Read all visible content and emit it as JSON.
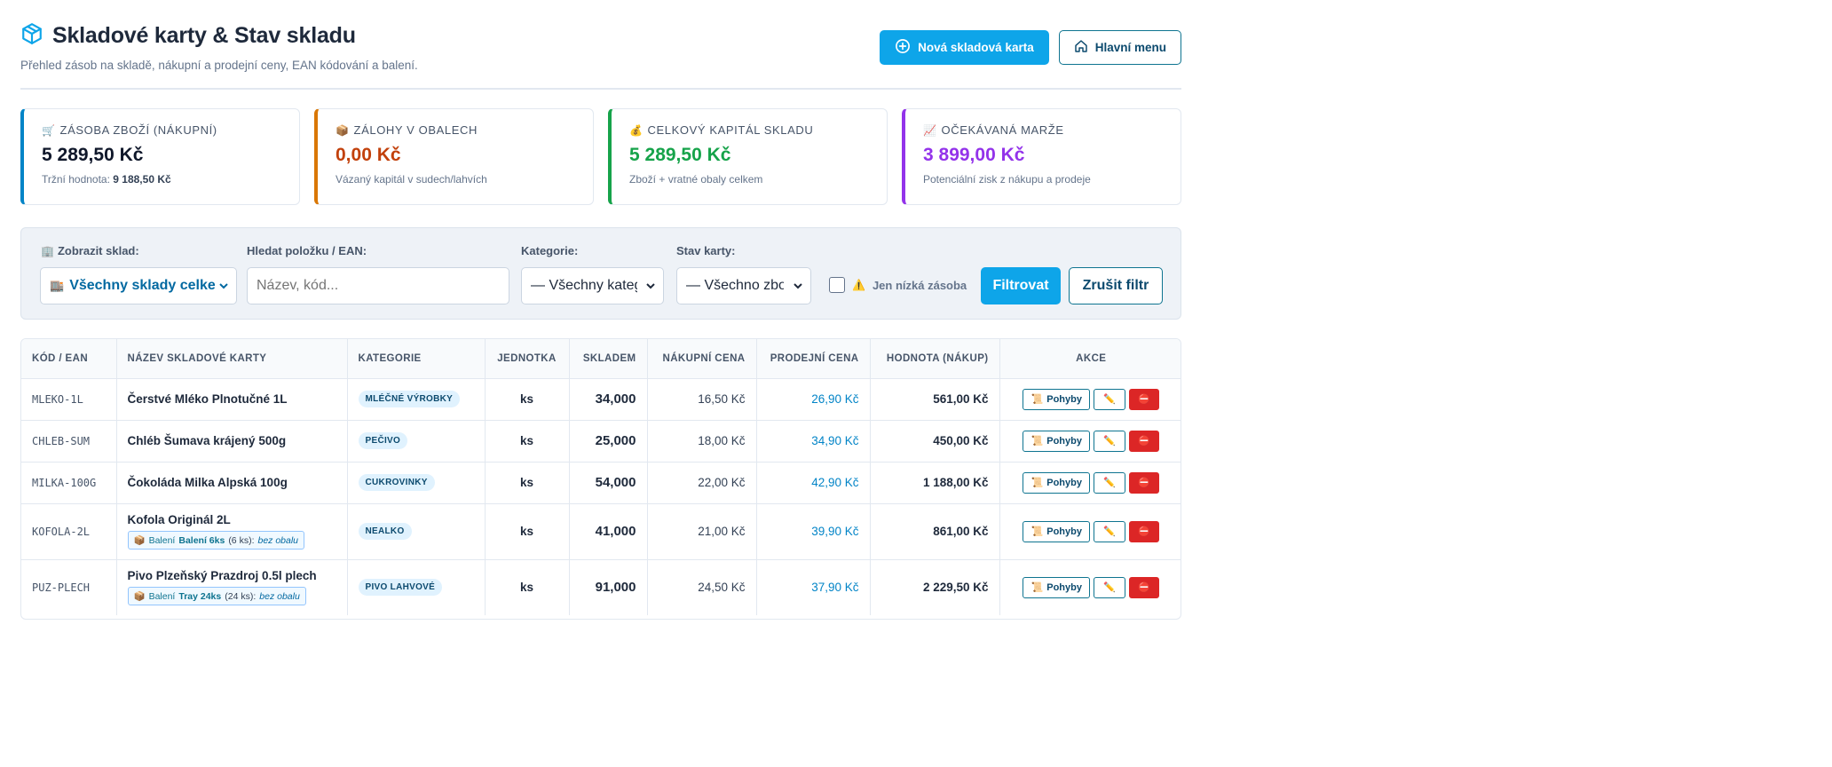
{
  "header": {
    "title": "Skladové karty & Stav skladu",
    "subtitle": "Přehled zásob na skladě, nákupní a prodejní ceny, EAN kódování a balení.",
    "new_card_label": "Nová skladová karta",
    "main_menu_label": "Hlavní menu"
  },
  "stats": [
    {
      "label": "ZÁSOBA ZBOŽÍ (NÁKUPNÍ)",
      "value": "5 289,50 Kč",
      "sub_prefix": "Tržní hodnota:",
      "sub_value": "9 188,50 Kč",
      "color": "#0284c7",
      "value_color": "#0f172a",
      "icon": "cart-icon"
    },
    {
      "label": "ZÁLOHY V OBALECH",
      "value": "0,00 Kč",
      "sub": "Vázaný kapitál v sudech/lahvích",
      "color": "#d97706",
      "value_color": "#c2410c",
      "icon": "package-icon"
    },
    {
      "label": "CELKOVÝ KAPITÁL SKLADU",
      "value": "5 289,50 Kč",
      "sub": "Zboží + vratné obaly celkem",
      "color": "#16a34a",
      "value_color": "#16a34a",
      "icon": "money-bag-icon"
    },
    {
      "label": "OČEKÁVANÁ MARŽE",
      "value": "3 899,00 Kč",
      "sub": "Potenciální zisk z nákupu a prodeje",
      "color": "#9333ea",
      "value_color": "#9333ea",
      "icon": "chart-up-icon"
    }
  ],
  "filter": {
    "warehouse_label": "Zobrazit sklad:",
    "warehouse_value": "Všechny sklady celkem",
    "search_label": "Hledat položku / EAN:",
    "search_placeholder": "Název, kód...",
    "category_label": "Kategorie:",
    "category_value": "— Všechny kategorie",
    "status_label": "Stav karty:",
    "status_value": "— Všechno zboží",
    "low_stock_label": "Jen nízká zásoba",
    "filter_button": "Filtrovat",
    "reset_button": "Zrušit filtr"
  },
  "table": {
    "columns": [
      "KÓD / EAN",
      "NÁZEV SKLADOVÉ KARTY",
      "KATEGORIE",
      "JEDNOTKA",
      "SKLADEM",
      "NÁKUPNÍ CENA",
      "PRODEJNÍ CENA",
      "HODNOTA (NÁKUP)",
      "AKCE"
    ],
    "rows": [
      {
        "code": "MLEKO-1L",
        "name": "Čerstvé Mléko Plnotučné 1L",
        "category": "MLÉČNÉ VÝROBKY",
        "unit": "ks",
        "stock": "34,000",
        "buy": "16,50 Kč",
        "sell": "26,90 Kč",
        "total": "561,00 Kč"
      },
      {
        "code": "CHLEB-SUM",
        "name": "Chléb Šumava krájený 500g",
        "category": "PEČIVO",
        "unit": "ks",
        "stock": "25,000",
        "buy": "18,00 Kč",
        "sell": "34,90 Kč",
        "total": "450,00 Kč"
      },
      {
        "code": "MILKA-100G",
        "name": "Čokoláda Milka Alpská 100g",
        "category": "CUKROVINKY",
        "unit": "ks",
        "stock": "54,000",
        "buy": "22,00 Kč",
        "sell": "42,90 Kč",
        "total": "1 188,00 Kč"
      },
      {
        "code": "KOFOLA-2L",
        "name": "Kofola Originál 2L",
        "category": "NEALKO",
        "unit": "ks",
        "stock": "41,000",
        "buy": "21,00 Kč",
        "sell": "39,90 Kč",
        "total": "861,00 Kč",
        "pack": {
          "prefix": "Balení",
          "name": "Balení 6ks",
          "qty": "(6 ks):",
          "deposit": "bez obalu"
        }
      },
      {
        "code": "PUZ-PLECH",
        "name": "Pivo Plzeňský Prazdroj 0.5l plech",
        "category": "PIVO LAHVOVÉ",
        "unit": "ks",
        "stock": "91,000",
        "buy": "24,50 Kč",
        "sell": "37,90 Kč",
        "total": "2 229,50 Kč",
        "pack": {
          "prefix": "Balení",
          "name": "Tray 24ks",
          "qty": "(24 ks):",
          "deposit": "bez obalu"
        }
      }
    ],
    "action_moves_label": "Pohyby"
  },
  "colors": {
    "accent": "#0ea5e9",
    "danger": "#dc2626",
    "teal": "#0e7490"
  }
}
